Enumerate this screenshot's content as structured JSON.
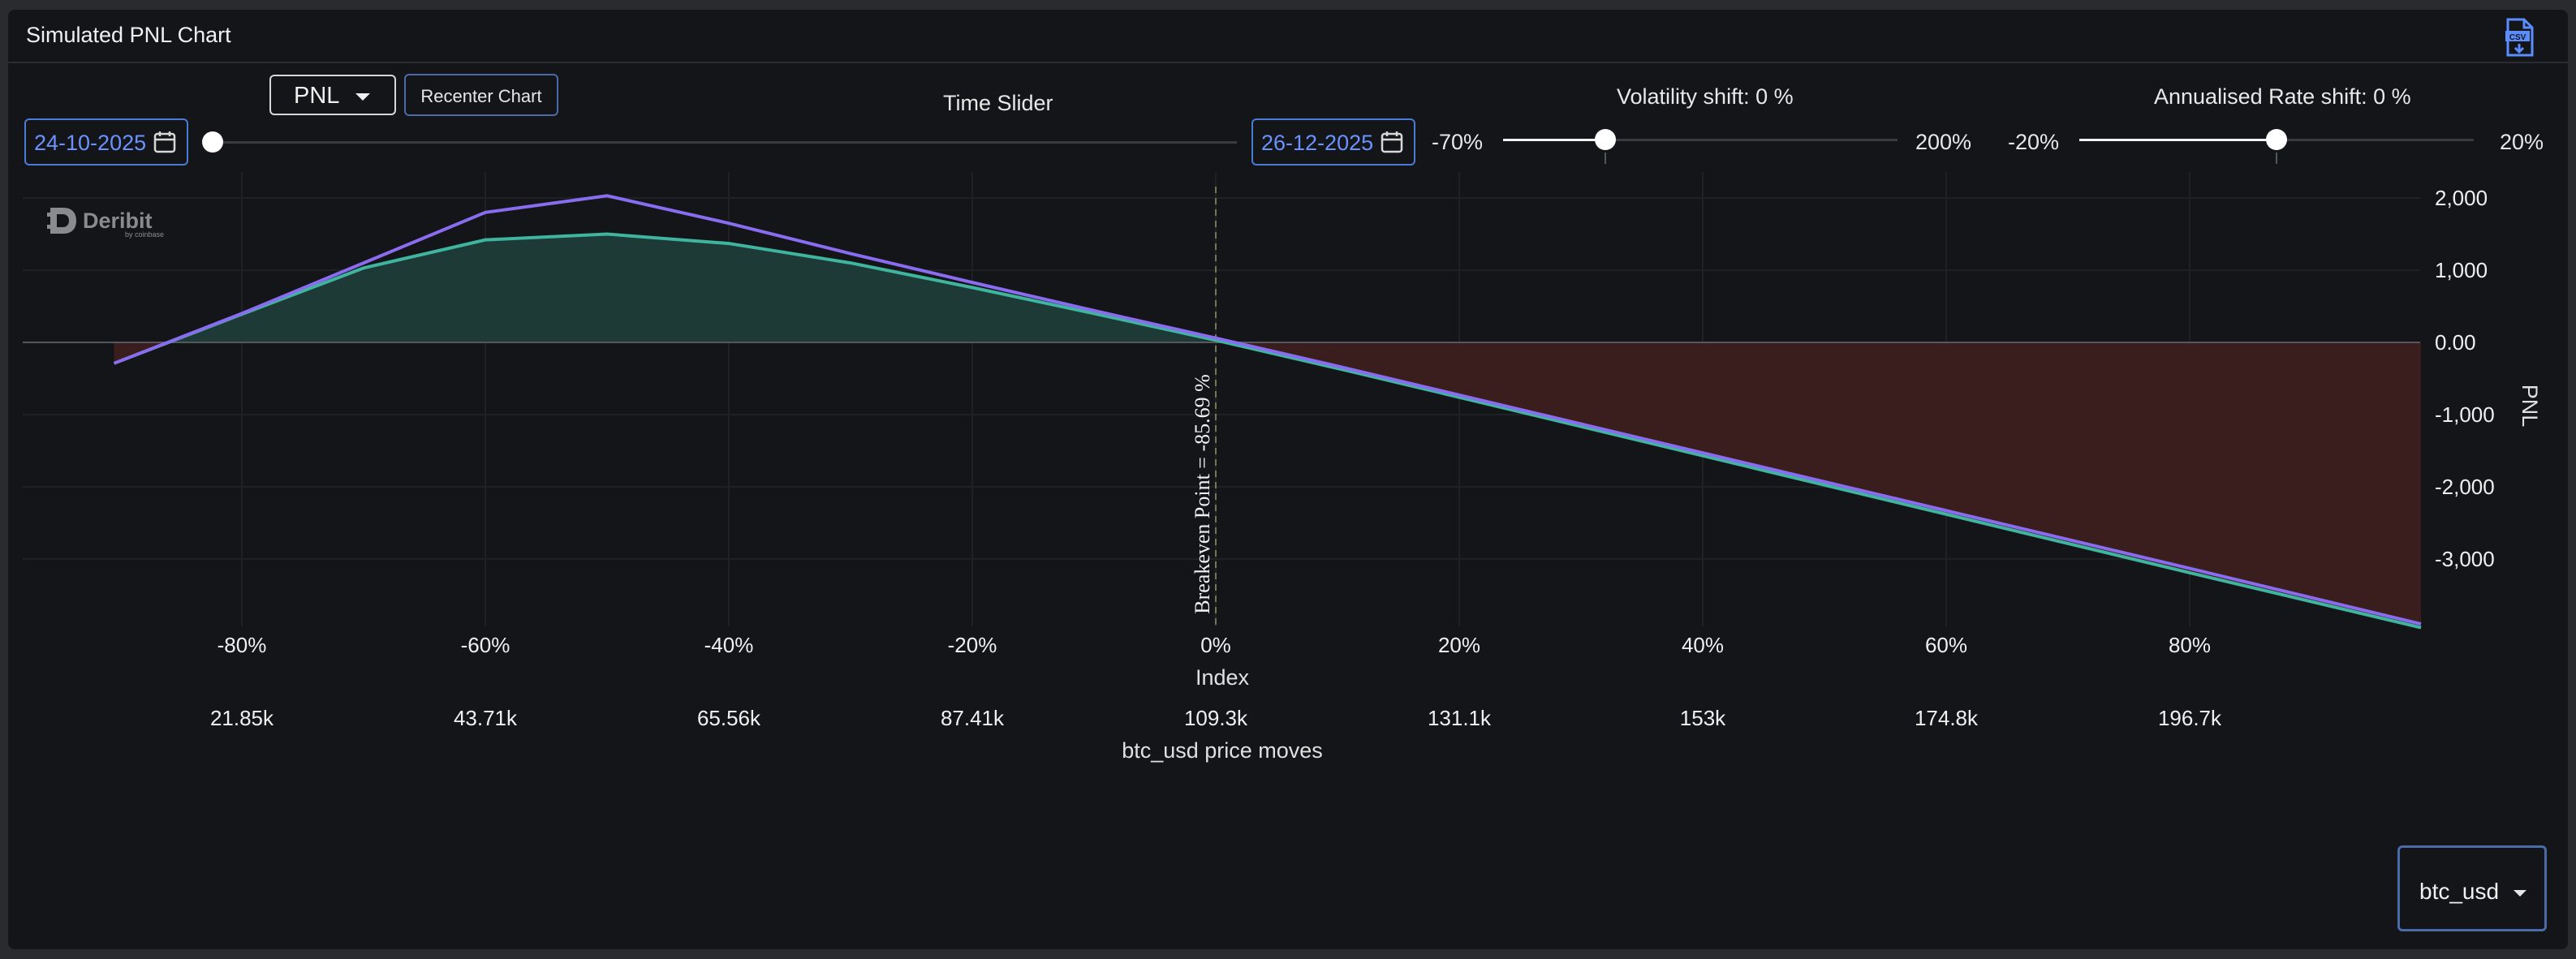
{
  "panel": {
    "title": "Simulated PNL Chart",
    "export_icon": "csv-file-icon"
  },
  "controls": {
    "start_date": "24-10-2025",
    "end_date": "26-12-2025",
    "metric_selector": "PNL",
    "recenter_label": "Recenter Chart",
    "time_slider_label": "Time Slider",
    "time_slider_value": 0,
    "volatility": {
      "label": "Volatility shift: 0 %",
      "min_label": "-70%",
      "max_label": "200%",
      "min": -70,
      "max": 200,
      "value": 0
    },
    "rate": {
      "label": "Annualised Rate shift: 0 %",
      "min_label": "-20%",
      "max_label": "20%",
      "min": -20,
      "max": 20,
      "value": 0
    },
    "asset_selector": "btc_usd"
  },
  "logo": {
    "name": "Deribit",
    "sub": "by coinbase"
  },
  "colors": {
    "expiry_line": "#8a6cf0",
    "today_line": "#3fb5a0",
    "profit_fill": "#1d3a36",
    "loss_fill": "#3a1e1e",
    "accent": "#6a93ff"
  },
  "chart_data": {
    "type": "line",
    "x_axis_label": "Index",
    "x2_axis_label": "btc_usd price moves",
    "y_axis_label": "PNL",
    "x_ticks": [
      -80,
      -60,
      -40,
      -20,
      0,
      20,
      40,
      60,
      80
    ],
    "x_tick_labels": [
      "-80%",
      "-60%",
      "-40%",
      "-20%",
      "0%",
      "20%",
      "40%",
      "60%",
      "80%"
    ],
    "price_tick_labels": [
      "21.85k",
      "43.71k",
      "65.56k",
      "87.41k",
      "109.3k",
      "131.1k",
      "153k",
      "174.8k",
      "196.7k"
    ],
    "y_ticks": [
      2000,
      1000,
      0,
      -1000,
      -2000,
      -3000
    ],
    "y_tick_labels": [
      "2,000",
      "1,000",
      "0.00",
      "-1,000",
      "-2,000",
      "-3,000"
    ],
    "xlim": [
      -98,
      99
    ],
    "ylim": [
      -4000,
      2000
    ],
    "series": [
      {
        "x": [
          -90.5,
          -80,
          -70,
          -60,
          -50,
          -40,
          -30,
          -20,
          -10,
          0,
          10,
          20,
          40,
          60,
          80,
          99
        ],
        "y": [
          -290,
          400,
          1100,
          1800,
          2030,
          1650,
          1230,
          830,
          440,
          60,
          -330,
          -730,
          -1530,
          -2330,
          -3130,
          -3900
        ]
      },
      {
        "x": [
          -90.5,
          -80,
          -70,
          -60,
          -50,
          -40,
          -30,
          -20,
          -10,
          0,
          10,
          20,
          40,
          60,
          80,
          99
        ],
        "y": [
          -290,
          390,
          1030,
          1420,
          1500,
          1370,
          1100,
          760,
          400,
          30,
          -360,
          -760,
          -1570,
          -2380,
          -3190,
          -3950
        ]
      }
    ],
    "annotation": "Breakeven Point = -85.69 %",
    "annotation_x": 0,
    "grid": true
  }
}
